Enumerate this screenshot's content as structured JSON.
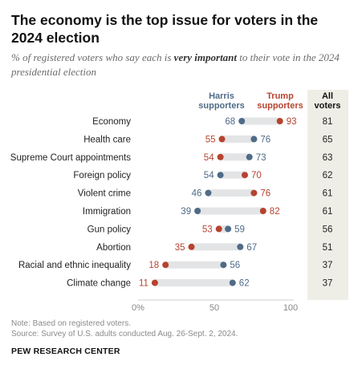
{
  "title": "The economy is the top issue for voters in the 2024 election",
  "subtitle": {
    "before": "% of registered voters who say each is ",
    "emphasis": "very important",
    "after": " to their vote in the 2024 presidential election"
  },
  "colors": {
    "harris": "#4e6b87",
    "trump": "#b5432e",
    "bar": "#e3e4e6",
    "all_bg": "#efeee6"
  },
  "chart_data": {
    "type": "dot",
    "categories": [
      "Economy",
      "Health care",
      "Supreme Court appointments",
      "Foreign policy",
      "Violent crime",
      "Immigration",
      "Gun policy",
      "Abortion",
      "Racial and ethnic inequality",
      "Climate change"
    ],
    "series": [
      {
        "name": "Harris supporters",
        "values": [
          68,
          76,
          73,
          54,
          46,
          39,
          59,
          67,
          56,
          62
        ]
      },
      {
        "name": "Trump supporters",
        "values": [
          93,
          55,
          54,
          70,
          76,
          82,
          53,
          35,
          18,
          11
        ]
      }
    ],
    "all_voters": {
      "name": "All voters",
      "values": [
        81,
        65,
        63,
        62,
        61,
        61,
        56,
        51,
        37,
        37
      ]
    },
    "xlim": [
      0,
      100
    ],
    "xticks": [
      "0%",
      "50",
      "100"
    ],
    "legend": {
      "harris_lines": [
        "Harris",
        "supporters"
      ],
      "trump_lines": [
        "Trump",
        "supporters"
      ],
      "all_lines": [
        "All",
        "voters"
      ]
    }
  },
  "footer": {
    "note": "Note: Based on registered voters.",
    "source": "Source: Survey of U.S. adults conducted Aug. 26-Sept. 2, 2024.",
    "brand": "PEW RESEARCH CENTER"
  }
}
